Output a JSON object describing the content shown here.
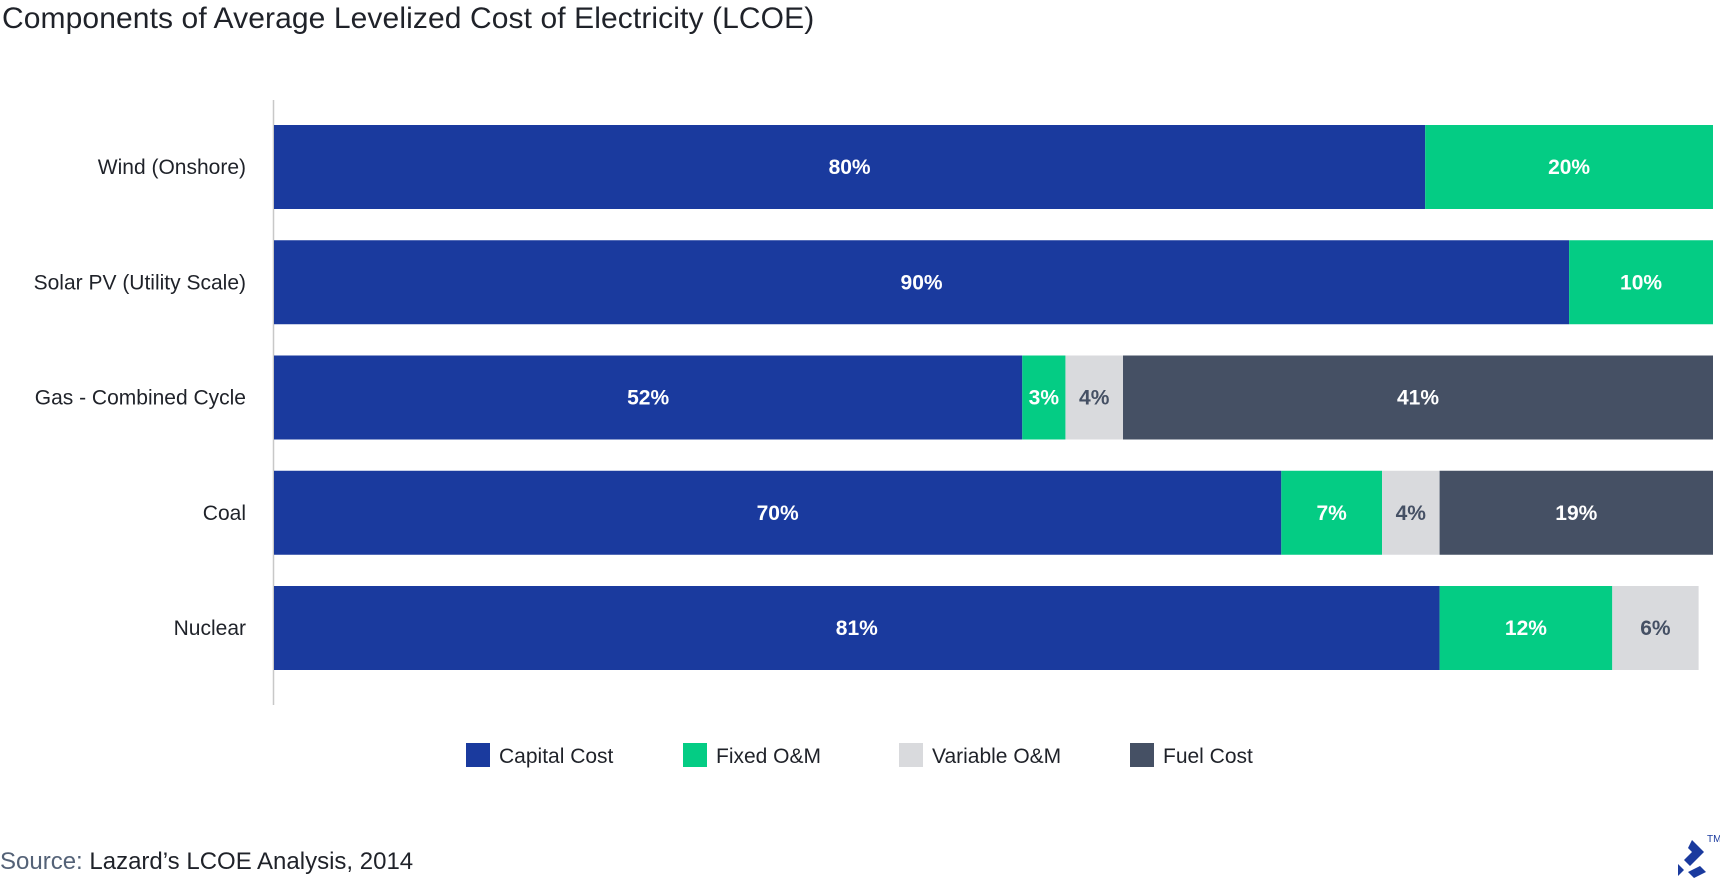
{
  "title": "Components of Average Levelized Cost of Electricity (LCOE)",
  "source": {
    "label": "Source:",
    "text": "Lazard’s LCOE Analysis, 2014"
  },
  "logo": {
    "icon": "toptal-logo-icon",
    "trademark": "TM"
  },
  "colors": {
    "capital": "#1a3a9e",
    "fixed": "#04cc84",
    "variable": "#d9dadd",
    "fuel": "#455064",
    "axis": "#c8c8c8"
  },
  "chart_data": {
    "type": "bar",
    "orientation": "horizontal",
    "stacked": true,
    "title": "Components of Average Levelized Cost of Electricity (LCOE)",
    "categories": [
      "Wind (Onshore)",
      "Solar PV (Utility Scale)",
      "Gas - Combined Cycle",
      "Coal",
      "Nuclear"
    ],
    "series": [
      {
        "name": "Capital Cost",
        "color": "#1a3a9e",
        "label_color": "#ffffff",
        "values": [
          80,
          90,
          52,
          70,
          81
        ]
      },
      {
        "name": "Fixed O&M",
        "color": "#04cc84",
        "label_color": "#ffffff",
        "values": [
          20,
          10,
          3,
          7,
          12
        ]
      },
      {
        "name": "Variable O&M",
        "color": "#d9dadd",
        "label_color": "#455064",
        "values": [
          0,
          0,
          4,
          4,
          6
        ]
      },
      {
        "name": "Fuel Cost",
        "color": "#455064",
        "label_color": "#ffffff",
        "values": [
          0,
          0,
          41,
          19,
          0
        ]
      }
    ],
    "value_suffix": "%",
    "xlim": [
      0,
      100
    ],
    "legend_position": "bottom",
    "grid": false
  }
}
